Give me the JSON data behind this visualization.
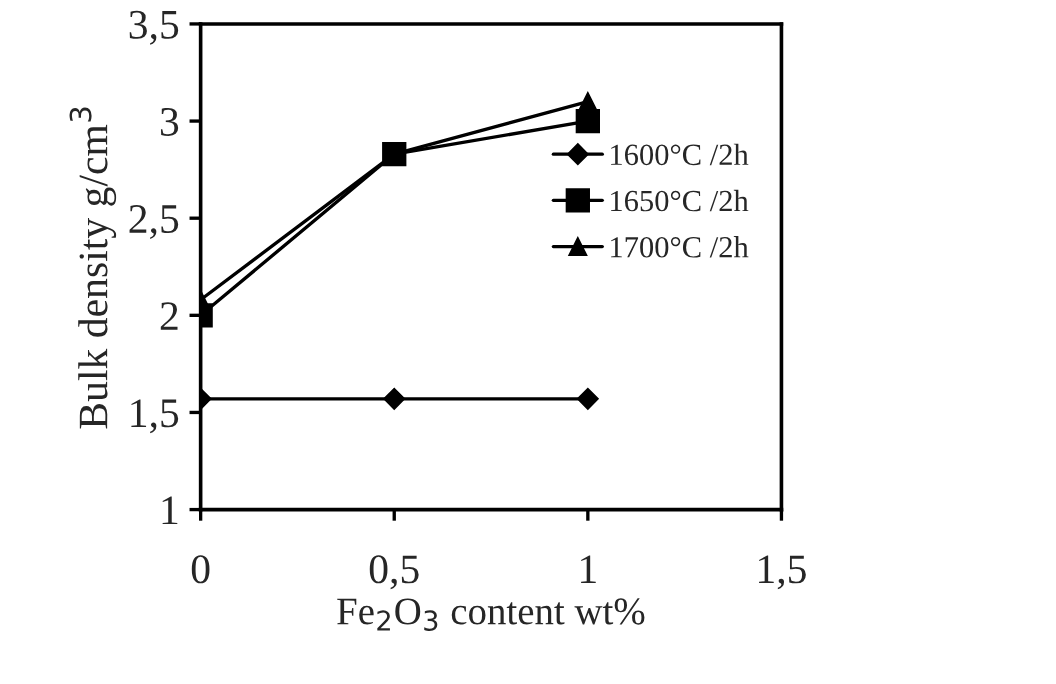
{
  "chart_data": {
    "type": "line",
    "xlabel": "Fe$_{2}$O$_{3}$ content wt%",
    "ylabel": "Bulk density g/cm$^{3}$",
    "x": [
      0,
      0.5,
      1
    ],
    "series": [
      {
        "name": "1600°C /2h",
        "color": "#000000",
        "marker": "diamond",
        "values": [
          1.57,
          1.57,
          1.57
        ]
      },
      {
        "name": "1650°C /2h",
        "color": "#000000",
        "marker": "square",
        "values": [
          2.0,
          2.83,
          3.0
        ]
      },
      {
        "name": "1700°C /2h",
        "color": "#000000",
        "marker": "triangle",
        "values": [
          2.08,
          2.83,
          3.1
        ]
      }
    ],
    "xlim": [
      0,
      1.5
    ],
    "xticks": [
      0,
      {
        "value": 0.5,
        "label": "0,5"
      },
      1,
      {
        "value": 1.5,
        "label": "1,5"
      }
    ],
    "ylim": [
      1,
      3.5
    ],
    "yticks": [
      1,
      {
        "value": 1.5,
        "label": "1,5"
      },
      2,
      {
        "value": 2.5,
        "label": "2,5"
      },
      3,
      {
        "value": 3.5,
        "label": "3,5"
      }
    ],
    "grid": false,
    "legend": "right",
    "line_style": "solid"
  }
}
